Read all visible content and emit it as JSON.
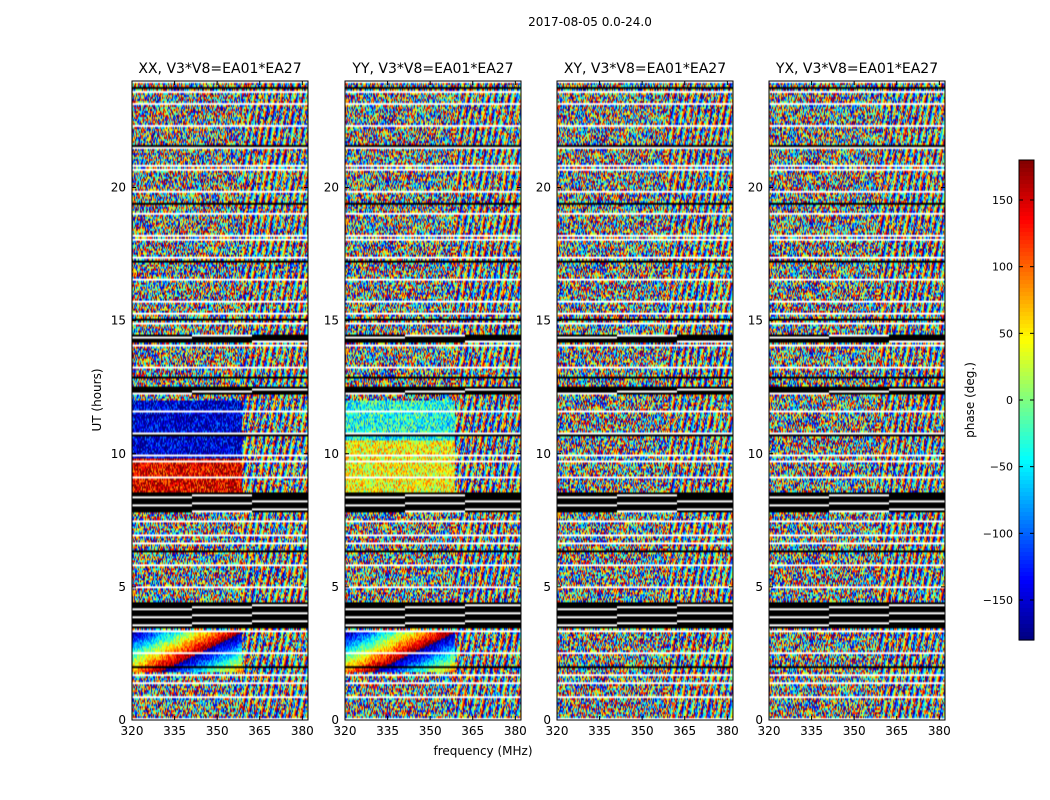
{
  "chart_data": {
    "type": "heatmap",
    "suptitle": "2017-08-05 0.0-24.0",
    "xlabel": "frequency (MHz)",
    "ylabel": "UT (hours)",
    "xlim": [
      320,
      382
    ],
    "ylim": [
      0,
      24
    ],
    "x_ticks": [
      320,
      335,
      350,
      365,
      380
    ],
    "y_ticks": [
      0,
      5,
      10,
      15,
      20
    ],
    "panels": [
      {
        "title": "XX, V3*V8=EA01*EA27",
        "id": "xx"
      },
      {
        "title": "YY, V3*V8=EA01*EA27",
        "id": "yy"
      },
      {
        "title": "XY, V3*V8=EA01*EA27",
        "id": "xy"
      },
      {
        "title": "YX, V3*V8=EA01*EA27",
        "id": "yx"
      }
    ],
    "colorbar": {
      "label": "phase (deg.)",
      "range": [
        -180,
        180
      ],
      "ticks": [
        -150,
        -100,
        -50,
        0,
        50,
        100,
        150
      ],
      "colormap": "jet"
    },
    "flagged_time_ranges_hours": [
      [
        3.45,
        4.4
      ],
      [
        7.8,
        8.45
      ],
      [
        12.25,
        12.55
      ],
      [
        14.2,
        14.45
      ]
    ],
    "notes_colors": {
      "flagged": "#000000",
      "gap": "#ffffff"
    }
  }
}
